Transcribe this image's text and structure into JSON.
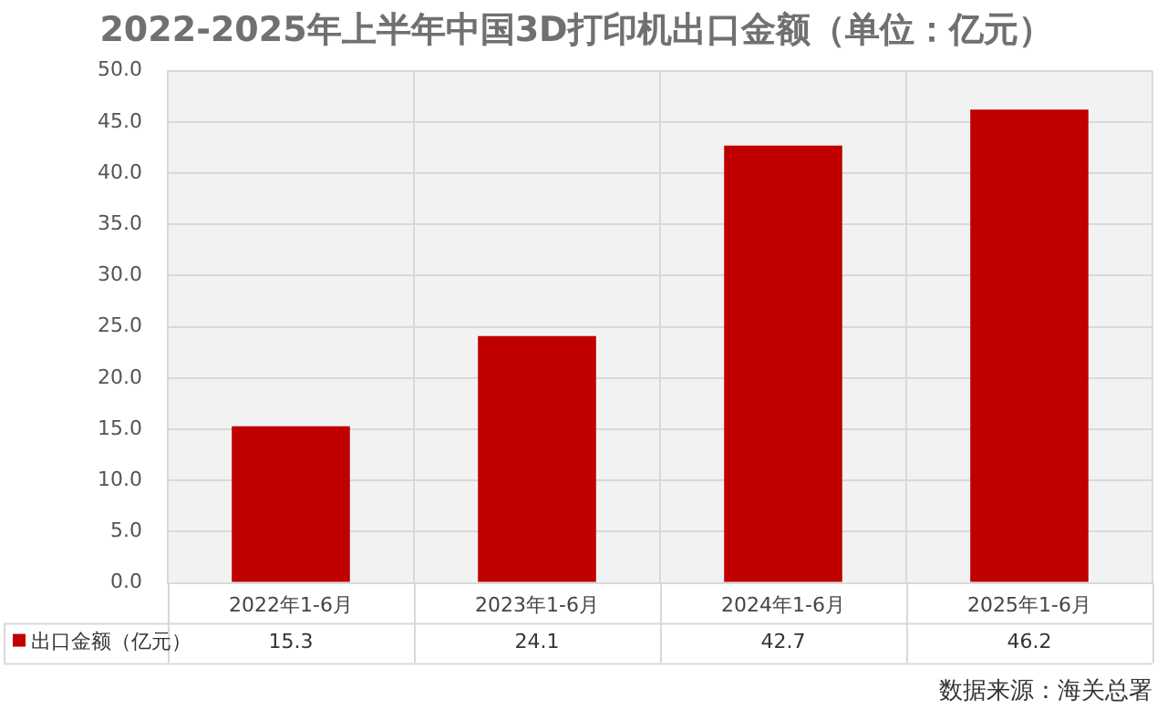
{
  "chart_data": {
    "type": "bar",
    "title": "2022-2025年上半年中国3D打印机出口金额（单位：亿元）",
    "categories": [
      "2022年1-6月",
      "2023年1-6月",
      "2024年1-6月",
      "2025年1-6月"
    ],
    "series": [
      {
        "name": "出口金额（亿元）",
        "color": "#c00000",
        "values": [
          15.3,
          24.1,
          42.7,
          46.2
        ]
      }
    ],
    "ylim": [
      0,
      50
    ],
    "yticks": [
      {
        "value": 0,
        "label": "0.0"
      },
      {
        "value": 5,
        "label": "5.0"
      },
      {
        "value": 10,
        "label": "10.0"
      },
      {
        "value": 15,
        "label": "15.0"
      },
      {
        "value": 20,
        "label": "20.0"
      },
      {
        "value": 25,
        "label": "25.0"
      },
      {
        "value": 30,
        "label": "30.0"
      },
      {
        "value": 35,
        "label": "35.0"
      },
      {
        "value": 40,
        "label": "40.0"
      },
      {
        "value": 45,
        "label": "45.0"
      },
      {
        "value": 50,
        "label": "50.0"
      }
    ],
    "grid": true,
    "legend": "bottom left",
    "data_labels": true,
    "annotations": [
      "数据来源：海关总署"
    ]
  }
}
